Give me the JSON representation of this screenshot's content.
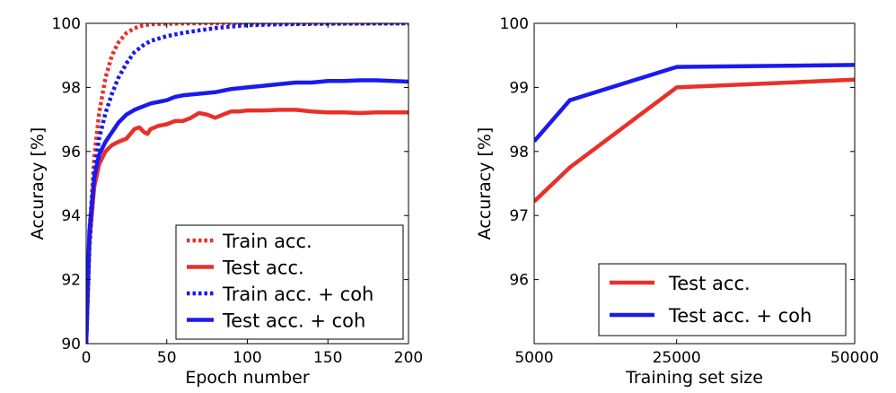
{
  "chart_data": [
    {
      "type": "line",
      "xlabel": "Epoch number",
      "ylabel": "Accuracy [%]",
      "xlim": [
        0,
        200
      ],
      "ylim": [
        90,
        100
      ],
      "xticks": [
        "0",
        "50",
        "100",
        "150",
        "200"
      ],
      "yticks": [
        "90",
        "92",
        "94",
        "96",
        "98",
        "100"
      ],
      "legend_position": "bottom-right",
      "series": [
        {
          "name": "Train acc.",
          "color": "#e8302a",
          "style": "dotted",
          "x": [
            0,
            2,
            5,
            8,
            12,
            16,
            20,
            25,
            30,
            35,
            40,
            50,
            70,
            100,
            150,
            200
          ],
          "y": [
            90.0,
            93.5,
            95.8,
            97.2,
            98.3,
            99.0,
            99.4,
            99.7,
            99.85,
            99.93,
            99.97,
            99.99,
            100.0,
            100.0,
            100.0,
            100.0
          ]
        },
        {
          "name": "Test acc.",
          "color": "#e8302a",
          "style": "solid",
          "x": [
            0,
            2,
            5,
            8,
            12,
            16,
            20,
            25,
            30,
            33,
            36,
            38,
            40,
            45,
            50,
            55,
            60,
            65,
            70,
            75,
            80,
            85,
            90,
            95,
            100,
            110,
            120,
            130,
            140,
            150,
            160,
            170,
            180,
            190,
            200
          ],
          "y": [
            90.0,
            93.2,
            94.9,
            95.6,
            96.0,
            96.2,
            96.3,
            96.4,
            96.7,
            96.75,
            96.6,
            96.55,
            96.7,
            96.8,
            96.85,
            96.95,
            96.95,
            97.05,
            97.2,
            97.15,
            97.05,
            97.15,
            97.25,
            97.25,
            97.28,
            97.28,
            97.3,
            97.3,
            97.25,
            97.22,
            97.22,
            97.2,
            97.22,
            97.22,
            97.22
          ]
        },
        {
          "name": "Train acc. + coh",
          "color": "#1a1aee",
          "style": "dotted",
          "x": [
            0,
            2,
            5,
            8,
            12,
            16,
            20,
            25,
            30,
            35,
            40,
            50,
            60,
            70,
            80,
            90,
            100,
            120,
            150,
            200
          ],
          "y": [
            90.0,
            93.0,
            95.3,
            96.4,
            97.2,
            97.8,
            98.3,
            98.75,
            99.1,
            99.3,
            99.45,
            99.6,
            99.7,
            99.78,
            99.85,
            99.9,
            99.94,
            99.97,
            99.99,
            100.0
          ]
        },
        {
          "name": "Test acc. + coh",
          "color": "#1a1aee",
          "style": "solid",
          "x": [
            0,
            2,
            5,
            8,
            12,
            16,
            20,
            25,
            30,
            35,
            40,
            45,
            50,
            55,
            60,
            70,
            80,
            90,
            100,
            110,
            120,
            130,
            140,
            150,
            160,
            170,
            180,
            190,
            200
          ],
          "y": [
            90.0,
            93.5,
            95.2,
            95.9,
            96.3,
            96.6,
            96.9,
            97.15,
            97.3,
            97.4,
            97.5,
            97.55,
            97.6,
            97.7,
            97.75,
            97.8,
            97.85,
            97.95,
            98.0,
            98.05,
            98.1,
            98.15,
            98.15,
            98.2,
            98.2,
            98.22,
            98.22,
            98.2,
            98.18
          ]
        }
      ]
    },
    {
      "type": "line",
      "xlabel": "Training set size",
      "ylabel": "Accuracy [%]",
      "xlim": [
        5000,
        50000
      ],
      "ylim": [
        95,
        100
      ],
      "xticks": [
        "5000",
        "25000",
        "50000"
      ],
      "xtick_values": [
        5000,
        25000,
        50000
      ],
      "yticks": [
        "96",
        "97",
        "98",
        "99",
        "100"
      ],
      "legend_position": "bottom-right",
      "series": [
        {
          "name": "Test acc.",
          "color": "#e8302a",
          "style": "solid",
          "x": [
            5000,
            10000,
            25000,
            50000
          ],
          "y": [
            97.22,
            97.75,
            99.0,
            99.12
          ]
        },
        {
          "name": "Test acc. + coh",
          "color": "#1a1aee",
          "style": "solid",
          "x": [
            5000,
            10000,
            25000,
            50000
          ],
          "y": [
            98.16,
            98.8,
            99.32,
            99.35
          ]
        }
      ]
    }
  ]
}
